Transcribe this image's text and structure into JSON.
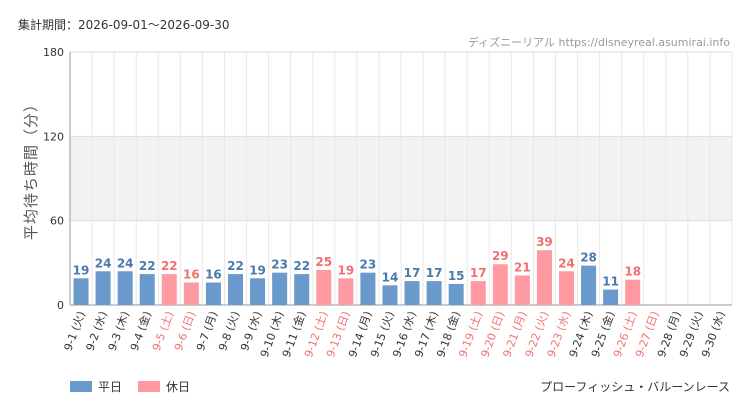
{
  "header": {
    "period": "集計期間：2026-09-01～2026-09-30",
    "source": "ディズニーリアル https://disneyreal.asumirai.info"
  },
  "footer": {
    "attraction": "プローフィッシュ・バルーンレース"
  },
  "colors": {
    "weekday": "#6a9acb",
    "holiday": "#ff9aa2",
    "weekday_text": "#4a7aab",
    "holiday_text": "#f07070",
    "band": "#f2f2f2"
  },
  "chart_data": {
    "type": "bar",
    "ylabel": "平均待ち時間（分）",
    "ylim": [
      0,
      180
    ],
    "yticks": [
      0,
      60,
      120,
      180
    ],
    "legend": [
      {
        "name": "平日",
        "kind": "weekday"
      },
      {
        "name": "休日",
        "kind": "holiday"
      }
    ],
    "legend_position": "bottom-left",
    "categories": [
      "9-1 (火)",
      "9-2 (水)",
      "9-3 (木)",
      "9-4 (金)",
      "9-5 (土)",
      "9-6 (日)",
      "9-7 (月)",
      "9-8 (火)",
      "9-9 (水)",
      "9-10 (木)",
      "9-11 (金)",
      "9-12 (土)",
      "9-13 (日)",
      "9-14 (月)",
      "9-15 (火)",
      "9-16 (水)",
      "9-17 (木)",
      "9-18 (金)",
      "9-19 (土)",
      "9-20 (日)",
      "9-21 (月)",
      "9-22 (火)",
      "9-23 (水)",
      "9-24 (木)",
      "9-25 (金)",
      "9-26 (土)",
      "9-27 (日)",
      "9-28 (月)",
      "9-29 (火)",
      "9-30 (水)"
    ],
    "values": [
      19,
      24,
      24,
      22,
      22,
      16,
      16,
      22,
      19,
      23,
      22,
      25,
      19,
      23,
      14,
      17,
      17,
      15,
      17,
      29,
      21,
      39,
      24,
      28,
      11,
      18,
      null,
      null,
      null,
      null
    ],
    "day_type": [
      "weekday",
      "weekday",
      "weekday",
      "weekday",
      "holiday",
      "holiday",
      "weekday",
      "weekday",
      "weekday",
      "weekday",
      "weekday",
      "holiday",
      "holiday",
      "weekday",
      "weekday",
      "weekday",
      "weekday",
      "weekday",
      "holiday",
      "holiday",
      "holiday",
      "holiday",
      "holiday",
      "weekday",
      "weekday",
      "holiday",
      "holiday",
      "weekday",
      "weekday",
      "weekday"
    ]
  }
}
